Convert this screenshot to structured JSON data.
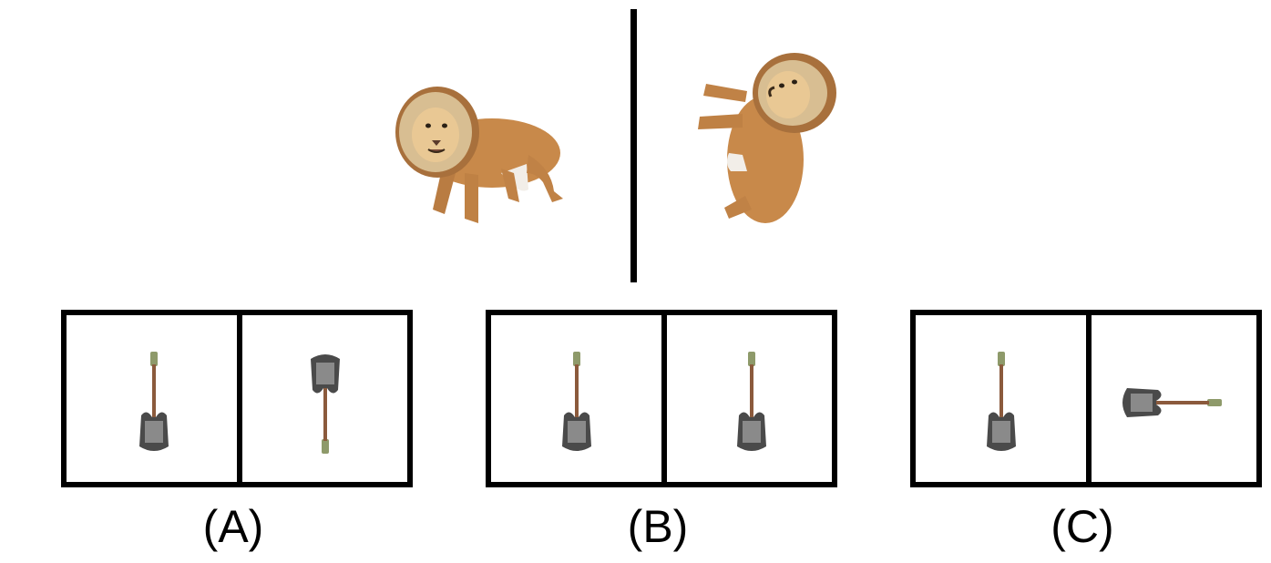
{
  "question": {
    "reference_left_image": "lion-standing-icon",
    "reference_right_image": "lion-rotated-icon"
  },
  "options": [
    {
      "label": "(A)",
      "left_image": "bass-guitar-upright-icon",
      "right_image": "bass-guitar-upside-down-icon"
    },
    {
      "label": "(B)",
      "left_image": "bass-guitar-upright-icon",
      "right_image": "bass-guitar-upright-icon"
    },
    {
      "label": "(C)",
      "left_image": "bass-guitar-upright-icon",
      "right_image": "bass-guitar-rotated-horizontal-icon"
    }
  ],
  "colors": {
    "lion_fur": "#C8894A",
    "lion_mane": "#A8703C",
    "lion_face": "#E9D3AE",
    "guitar_body": "#4A4A4A",
    "guitar_pickguard": "#8A8A8A",
    "guitar_neck": "#8B5A3C",
    "guitar_headstock": "#8E9A6A"
  }
}
